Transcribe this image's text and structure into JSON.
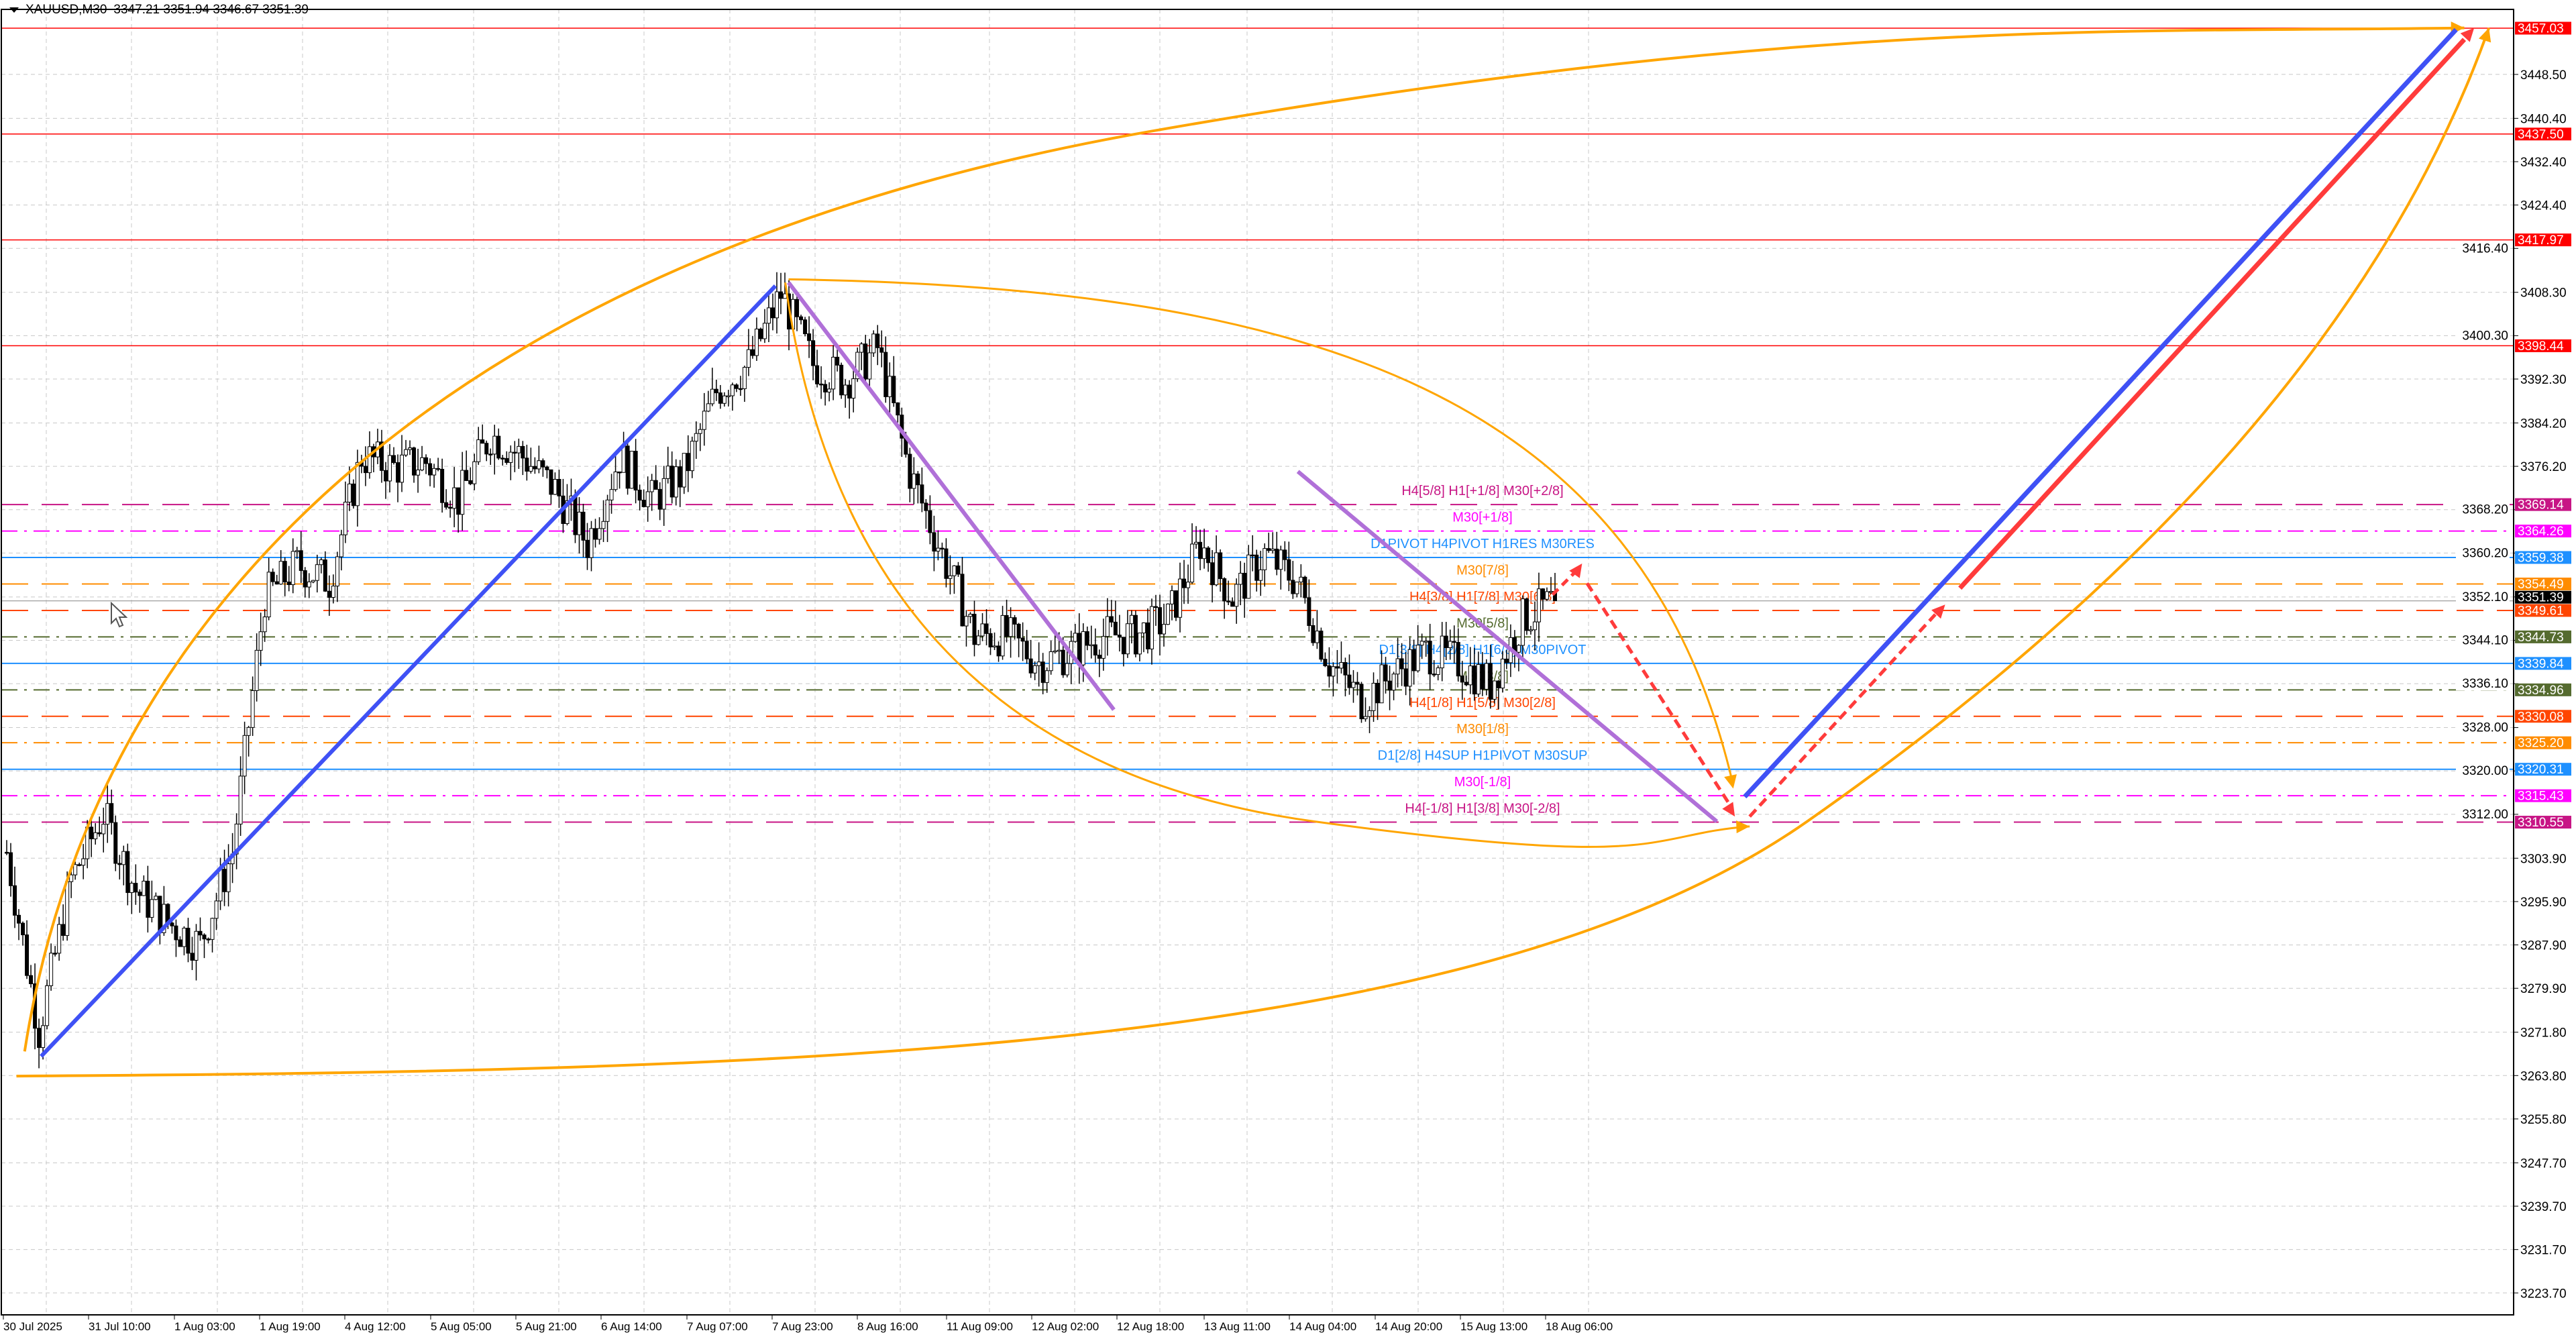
{
  "header": {
    "symbol": "XAUUSD,M30",
    "ohlc": "3347.21 3351.94 3346.67 3351.39"
  },
  "price_axis": {
    "ticks": [
      "3448.50",
      "3440.40",
      "3432.40",
      "3424.40",
      "3416.40",
      "3408.30",
      "3400.30",
      "3392.30",
      "3384.20",
      "3376.20",
      "3368.20",
      "3360.20",
      "3352.10",
      "3344.10",
      "3336.10",
      "3328.00",
      "3320.00",
      "3312.00",
      "3303.90",
      "3295.90",
      "3287.90",
      "3279.90",
      "3271.80",
      "3263.80",
      "3255.80",
      "3247.70",
      "3239.70",
      "3231.70",
      "3223.70"
    ],
    "current_price": "3351.39"
  },
  "time_axis": [
    "30 Jul 2025",
    "31 Jul 10:00",
    "1 Aug 03:00",
    "1 Aug 19:00",
    "4 Aug 12:00",
    "5 Aug 05:00",
    "5 Aug 21:00",
    "6 Aug 14:00",
    "7 Aug 07:00",
    "7 Aug 23:00",
    "8 Aug 16:00",
    "11 Aug 09:00",
    "12 Aug 02:00",
    "12 Aug 18:00",
    "13 Aug 11:00",
    "14 Aug 04:00",
    "14 Aug 20:00",
    "15 Aug 13:00",
    "18 Aug 06:00"
  ],
  "levels": [
    {
      "price": "3457.03",
      "color": "#ff0000",
      "style": "solid",
      "label": ""
    },
    {
      "price": "3437.50",
      "color": "#ff0000",
      "style": "solid",
      "label": ""
    },
    {
      "price": "3417.97",
      "color": "#ff0000",
      "style": "solid",
      "label": ""
    },
    {
      "price": "3398.44",
      "color": "#ff0000",
      "style": "solid",
      "label": ""
    },
    {
      "price": "3369.14",
      "color": "#c71585",
      "style": "dash",
      "label": "H4[5/8] H1[+1/8] M30[+2/8]"
    },
    {
      "price": "3364.26",
      "color": "#ff00ff",
      "style": "dashdot",
      "label": "M30[+1/8]"
    },
    {
      "price": "3359.38",
      "color": "#1e90ff",
      "style": "solid",
      "label": "D1PIVOT H4PIVOT H1RES M30RES"
    },
    {
      "price": "3354.49",
      "color": "#ff8c00",
      "style": "dash",
      "label": "M30[7/8]"
    },
    {
      "price": "3349.61",
      "color": "#ff4500",
      "style": "dash",
      "label": "H4[3/8] H1[7/8] M30[6/8]"
    },
    {
      "price": "3344.73",
      "color": "#556b2f",
      "style": "dashdot",
      "label": "M30[5/8]"
    },
    {
      "price": "3339.84",
      "color": "#1e90ff",
      "style": "solid",
      "label": "D1[3/8] H4[2/8] H1[6/8] M30PIVOT"
    },
    {
      "price": "3334.96",
      "color": "#556b2f",
      "style": "dashdot",
      "label": "M30[3/8]"
    },
    {
      "price": "3330.08",
      "color": "#ff4500",
      "style": "dash",
      "label": "H4[1/8] H1[5/8] M30[2/8]"
    },
    {
      "price": "3325.20",
      "color": "#ff8c00",
      "style": "dashdot",
      "label": "M30[1/8]"
    },
    {
      "price": "3320.31",
      "color": "#1e90ff",
      "style": "solid",
      "label": "D1[2/8] H4SUP H1PIVOT M30SUP"
    },
    {
      "price": "3315.43",
      "color": "#ff00ff",
      "style": "dashdot",
      "label": "M30[-1/8]"
    },
    {
      "price": "3310.55",
      "color": "#c71585",
      "style": "dash",
      "label": "H4[-1/8] H1[3/8] M30[-2/8]"
    }
  ],
  "price_path": [
    3305,
    3272,
    3300,
    3312,
    3298,
    3292,
    3288,
    3305,
    3352,
    3358,
    3355,
    3378,
    3376,
    3377,
    3370,
    3382,
    3378,
    3372,
    3362,
    3378,
    3370,
    3375,
    3390,
    3395,
    3408,
    3395,
    3392,
    3398,
    3375,
    3360,
    3345,
    3345,
    3340,
    3342,
    3345,
    3345,
    3348,
    3362,
    3352,
    3360,
    3355,
    3340,
    3333,
    3338,
    3342,
    3340,
    3336,
    3348,
    3351.39
  ],
  "colors": {
    "drawing_orange": "#ffa500",
    "trend_blue": "#3f51f5",
    "trend_purple": "#b070d8",
    "arrow_red": "#ff3b3b",
    "current_price_bg": "#000000"
  }
}
